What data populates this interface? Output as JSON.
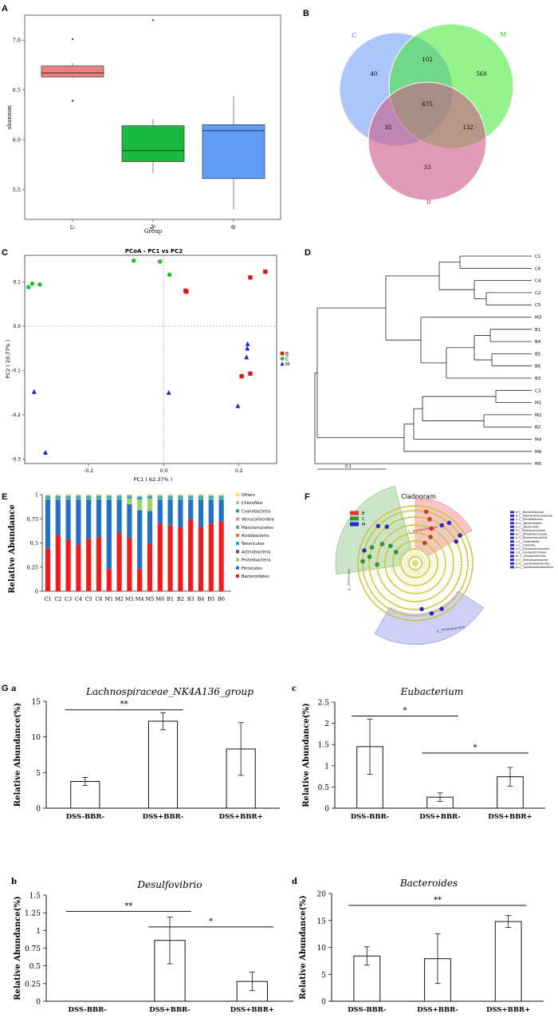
{
  "panels": {
    "A": {
      "letter": "A",
      "chart_type": "box",
      "ylabel": "shannon",
      "xlabel": "Group",
      "yticks": [
        "5.5",
        "6.0",
        "6.5",
        "7.0"
      ],
      "ytick_values": [
        5.5,
        6.0,
        6.5,
        7.0
      ],
      "ylim": [
        5.2,
        7.25
      ],
      "groups": [
        {
          "name": "C",
          "color": "#f08080",
          "q1": 6.63,
          "median": 6.67,
          "q3": 6.74,
          "whisker_low": 6.62,
          "whisker_high": 6.77,
          "outliers": [
            7.01,
            6.39
          ]
        },
        {
          "name": "M",
          "color": "#1aba40",
          "q1": 5.78,
          "median": 5.89,
          "q3": 6.14,
          "whisker_low": 5.66,
          "whisker_high": 6.21,
          "outliers": [
            7.2
          ]
        },
        {
          "name": "B",
          "color": "#5f9cf8",
          "q1": 5.61,
          "median": 6.09,
          "q3": 6.15,
          "whisker_low": 5.3,
          "whisker_high": 6.44,
          "outliers": []
        }
      ]
    },
    "B": {
      "letter": "B",
      "chart_type": "venn",
      "sets": [
        {
          "name": "C",
          "color": "#7aa3f5"
        },
        {
          "name": "M",
          "color": "#3fe82f"
        },
        {
          "name": "B",
          "color": "#cc5a86"
        }
      ],
      "regions": {
        "C_only": "40",
        "M_only": "560",
        "B_only": "33",
        "C_M": "102",
        "C_B": "35",
        "M_B": "132",
        "all": "675"
      }
    },
    "C": {
      "letter": "C",
      "chart_type": "scatter",
      "title": "PCoA - PC1 vs PC2",
      "xlabel": "PC1 ( 62.37% )",
      "ylabel": "PC2 ( 20.77% )",
      "xticks": [
        "-0.2",
        "0.0",
        "0.2"
      ],
      "xtick_values": [
        -0.2,
        0.0,
        0.2
      ],
      "yticks": [
        "0.1",
        "0.0",
        "-0.1",
        "-0.2",
        "-0.3"
      ],
      "ytick_values": [
        0.1,
        0.0,
        -0.1,
        -0.2,
        -0.3
      ],
      "xlim": [
        -0.37,
        0.3
      ],
      "ylim": [
        -0.31,
        0.16
      ],
      "legend": [
        {
          "name": "B",
          "color": "#e01616",
          "shape": "square"
        },
        {
          "name": "C",
          "color": "#18c21e",
          "shape": "circle"
        },
        {
          "name": "M",
          "color": "#1b24d6",
          "shape": "triangle"
        }
      ],
      "series": [
        {
          "name": "B",
          "points": [
            [
              0.23,
              0.11
            ],
            [
              0.27,
              0.123
            ],
            [
              0.058,
              0.08
            ],
            [
              0.06,
              0.078
            ],
            [
              0.207,
              -0.113
            ],
            [
              0.23,
              -0.107
            ]
          ]
        },
        {
          "name": "C",
          "points": [
            [
              -0.36,
              0.088
            ],
            [
              -0.35,
              0.096
            ],
            [
              -0.33,
              0.094
            ],
            [
              -0.08,
              0.148
            ],
            [
              -0.01,
              0.146
            ],
            [
              0.015,
              0.116
            ]
          ]
        },
        {
          "name": "M",
          "points": [
            [
              -0.345,
              -0.148
            ],
            [
              -0.315,
              -0.285
            ],
            [
              0.013,
              -0.15
            ],
            [
              0.197,
              -0.18
            ],
            [
              0.223,
              -0.04
            ],
            [
              0.222,
              -0.05
            ],
            [
              0.22,
              -0.07
            ]
          ]
        }
      ]
    },
    "D": {
      "letter": "D",
      "chart_type": "dendrogram",
      "leaves": [
        "C1",
        "C6",
        "C4",
        "C2",
        "C5",
        "M3",
        "B1",
        "B4",
        "B5",
        "B6",
        "B3",
        "C3",
        "M1",
        "M2",
        "B2",
        "M4",
        "M6",
        "M5"
      ],
      "scale_label": "0.1"
    },
    "E": {
      "letter": "E",
      "chart_type": "stacked_bar",
      "ylabel": "Relative Abundance",
      "yticks": [
        "0",
        "0.25",
        "0.5",
        "0.75",
        "1"
      ],
      "ytick_values": [
        0,
        0.25,
        0.5,
        0.75,
        1
      ],
      "categories": [
        "C1",
        "C2",
        "C3",
        "C4",
        "C5",
        "C6",
        "M1",
        "M2",
        "M3",
        "M4",
        "M5",
        "M6",
        "B1",
        "B2",
        "B3",
        "B4",
        "B5",
        "B6"
      ],
      "series": [
        {
          "name": "Bacteroidetes",
          "color": "#f01c1c",
          "values": [
            0.44,
            0.58,
            0.53,
            0.48,
            0.54,
            0.56,
            0.23,
            0.6,
            0.55,
            0.23,
            0.49,
            0.7,
            0.68,
            0.66,
            0.74,
            0.67,
            0.7,
            0.72
          ]
        },
        {
          "name": "Firmicutes",
          "color": "#2471c4",
          "values": [
            0.51,
            0.37,
            0.42,
            0.47,
            0.41,
            0.39,
            0.72,
            0.35,
            0.35,
            0.61,
            0.34,
            0.25,
            0.27,
            0.29,
            0.21,
            0.28,
            0.25,
            0.23
          ]
        },
        {
          "name": "Proteobacteria",
          "color": "#9ed36a",
          "values": [
            0.01,
            0.01,
            0.01,
            0.01,
            0.01,
            0.01,
            0.01,
            0.01,
            0.06,
            0.11,
            0.13,
            0.01,
            0.01,
            0.01,
            0.01,
            0.01,
            0.01,
            0.01
          ]
        },
        {
          "name": "Actinobacteria",
          "color": "#3a4f8e",
          "values": [
            0.005,
            0.005,
            0.005,
            0.005,
            0.005,
            0.005,
            0.005,
            0.005,
            0.005,
            0.005,
            0.005,
            0.005,
            0.005,
            0.005,
            0.005,
            0.005,
            0.005,
            0.005
          ]
        },
        {
          "name": "Tenericutes",
          "color": "#1eb0c8",
          "values": [
            0.02,
            0.02,
            0.02,
            0.02,
            0.02,
            0.02,
            0.02,
            0.02,
            0.02,
            0.02,
            0.02,
            0.02,
            0.02,
            0.02,
            0.02,
            0.02,
            0.02,
            0.02
          ]
        },
        {
          "name": "Acidobacteria",
          "color": "#f07a2a",
          "values": [
            0.002,
            0.002,
            0.002,
            0.002,
            0.002,
            0.002,
            0.002,
            0.002,
            0.002,
            0.002,
            0.002,
            0.002,
            0.002,
            0.002,
            0.002,
            0.002,
            0.002,
            0.002
          ]
        },
        {
          "name": "Planctomycetes",
          "color": "#8c8c8c",
          "values": [
            0.002,
            0.002,
            0.002,
            0.002,
            0.002,
            0.002,
            0.002,
            0.002,
            0.002,
            0.002,
            0.002,
            0.002,
            0.002,
            0.002,
            0.002,
            0.002,
            0.002,
            0.002
          ]
        },
        {
          "name": "Verrucomicrobia",
          "color": "#e87fb0",
          "values": [
            0.002,
            0.002,
            0.002,
            0.002,
            0.002,
            0.002,
            0.002,
            0.002,
            0.002,
            0.002,
            0.002,
            0.002,
            0.002,
            0.002,
            0.002,
            0.002,
            0.002,
            0.002
          ]
        },
        {
          "name": "Cyanobacteria",
          "color": "#28a060",
          "values": [
            0.003,
            0.003,
            0.003,
            0.003,
            0.003,
            0.003,
            0.003,
            0.003,
            0.003,
            0.003,
            0.003,
            0.003,
            0.003,
            0.003,
            0.003,
            0.003,
            0.003,
            0.003
          ]
        },
        {
          "name": "Chloroflexi",
          "color": "#b5b5b5",
          "values": [
            0.002,
            0.002,
            0.002,
            0.002,
            0.002,
            0.002,
            0.002,
            0.002,
            0.002,
            0.002,
            0.002,
            0.002,
            0.002,
            0.002,
            0.002,
            0.002,
            0.002,
            0.002
          ]
        },
        {
          "name": "Others",
          "color": "#ffe23a",
          "values": [
            0.004,
            0.004,
            0.004,
            0.004,
            0.004,
            0.004,
            0.004,
            0.004,
            0.004,
            0.004,
            0.004,
            0.004,
            0.004,
            0.004,
            0.004,
            0.004,
            0.004,
            0.004
          ]
        }
      ],
      "legend_order": [
        "Others",
        "Chloroflexi",
        "Cyanobacteria",
        "Verrucomicrobia",
        "Planctomycetes",
        "Acidobacteria",
        "Tenericutes",
        "Actinobacteria",
        "Proteobacteria",
        "Firmicutes",
        "Bacteroidetes"
      ]
    },
    "F": {
      "letter": "F",
      "chart_type": "cladogram",
      "title": "Cladogram",
      "groups": [
        {
          "name": "B",
          "color": "#e03030"
        },
        {
          "name": "C",
          "color": "#2e9a2e"
        },
        {
          "name": "M",
          "color": "#2a2ad0"
        }
      ],
      "sector_labels": [
        "f__Bacteroidaceae",
        "p__Firmicutes",
        "p__Proteobacteria"
      ],
      "legend_items": [
        "a: f__Bacteroidaceae",
        "b: f__Porphyromonadaceae",
        "c: f__Prevotellaceae",
        "d: o__Bacteroidales",
        "e: c__Bacteroidia",
        "f: f__Enterococcaceae",
        "g: f__Streptococcaceae",
        "h: f__Ruminococcaceae",
        "i: o__Clostridiales",
        "j: c__Clostridia",
        "k: f__Erysipelotrichaceae",
        "l: o__Erysipelotrichales",
        "m: c__Erysipelotrichia",
        "n: f__Helicobacteraceae",
        "o: o__Campylobacterales",
        "p: c__Epsilonproteobacteria"
      ]
    },
    "G": {
      "letter": "G",
      "subpanels": [
        {
          "letter": "a",
          "title": "Lachnospiraceae_NK4A136_group",
          "ylabel": "Relative Abundance(%)",
          "categories": [
            "DSS-BBR-",
            "DSS+BBR-",
            "DSS+BBR+"
          ],
          "values": [
            3.75,
            12.2,
            8.3
          ],
          "errors": [
            0.55,
            1.2,
            3.7
          ],
          "yticks": [
            "0",
            "5",
            "10",
            "15"
          ],
          "ytick_values": [
            0,
            5,
            10,
            15
          ],
          "ylim": [
            0,
            15
          ],
          "sig": [
            {
              "from": 0,
              "to": 1,
              "y": 13.8,
              "label": "**"
            }
          ]
        },
        {
          "letter": "c",
          "title": "Eubacterium",
          "ylabel": "Relative Abundance(%)",
          "categories": [
            "DSS-BBR-",
            "DSS+BBR-",
            "DSS+BBR+"
          ],
          "values": [
            1.45,
            0.26,
            0.74
          ],
          "errors": [
            0.65,
            0.1,
            0.22
          ],
          "yticks": [
            "0",
            "0.5",
            "1",
            "1.5",
            "2",
            "2.5"
          ],
          "ytick_values": [
            0,
            0.5,
            1,
            1.5,
            2,
            2.5
          ],
          "ylim": [
            0,
            2.5
          ],
          "sig": [
            {
              "from": 0,
              "to": 1,
              "y": 2.17,
              "label": "*"
            },
            {
              "from": 1,
              "to": 2,
              "y": 1.3,
              "label": "*"
            }
          ]
        },
        {
          "letter": "b",
          "title": "Desulfovibrio",
          "ylabel": "Relative Abundance(%)",
          "categories": [
            "DSS-BBR-",
            "DSS+BBR-",
            "DSS+BBR+"
          ],
          "values": [
            0.0,
            0.86,
            0.28
          ],
          "errors": [
            0.0,
            0.33,
            0.13
          ],
          "yticks": [
            "0",
            "0.25",
            "0.5",
            "0.75",
            "1",
            "1.25",
            "1.5"
          ],
          "ytick_values": [
            0,
            0.25,
            0.5,
            0.75,
            1,
            1.25,
            1.5
          ],
          "ylim": [
            0,
            1.5
          ],
          "sig": [
            {
              "from": 0,
              "to": 1,
              "y": 1.27,
              "label": "**"
            },
            {
              "from": 1,
              "to": 2,
              "y": 1.05,
              "label": "*"
            }
          ]
        },
        {
          "letter": "d",
          "title": "Bacteroides",
          "ylabel": "Relative Abundance(%)",
          "categories": [
            "DSS-BBR-",
            "DSS+BBR-",
            "DSS+BBR+"
          ],
          "values": [
            8.4,
            7.9,
            14.8
          ],
          "errors": [
            1.7,
            4.6,
            1.1
          ],
          "yticks": [
            "0",
            "5",
            "10",
            "15",
            "20"
          ],
          "ytick_values": [
            0,
            5,
            10,
            15,
            20
          ],
          "ylim": [
            0,
            20
          ],
          "sig": [
            {
              "from": 0,
              "to": 2,
              "y": 17.8,
              "label": "**"
            }
          ]
        }
      ]
    }
  }
}
